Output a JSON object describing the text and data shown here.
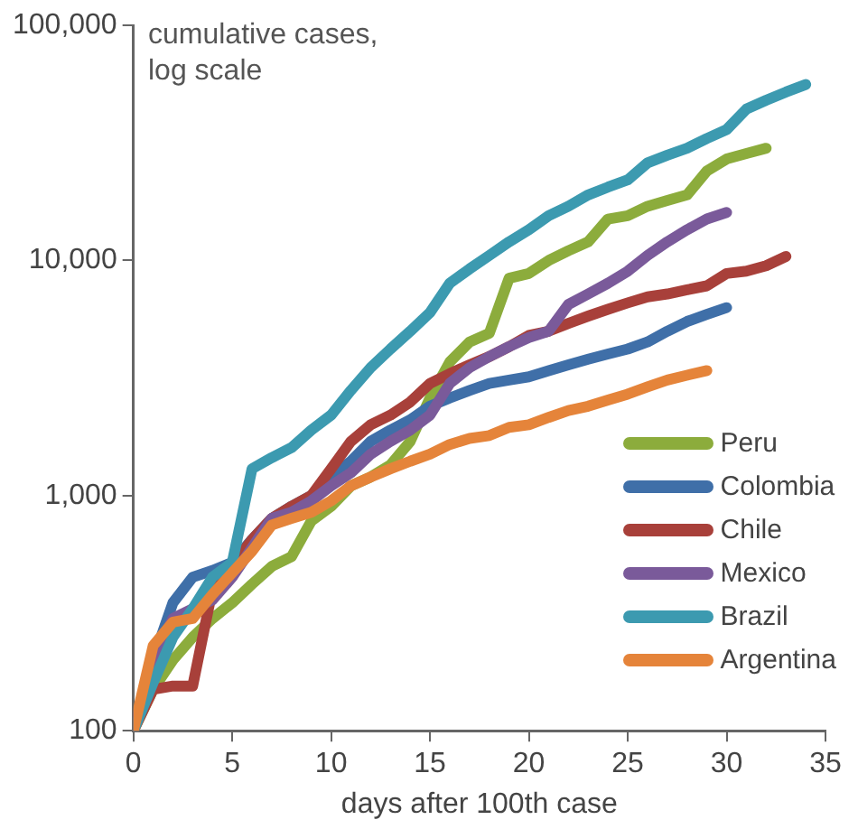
{
  "chart_data": {
    "type": "line",
    "ylabel": "cumulative cases, log scale",
    "xlabel": "days after 100th case",
    "log": "y",
    "grid": false,
    "legend": "bottom right",
    "marker": "none",
    "line_style": "solid",
    "xlim": [
      0,
      35
    ],
    "xticks": [
      0,
      5,
      10,
      15,
      20,
      25,
      30,
      35
    ],
    "ylim": [
      100,
      100000
    ],
    "yticks": [
      100,
      {
        "value": 1000,
        "label": "1,000"
      },
      {
        "value": 10000,
        "label": "10,000"
      },
      {
        "value": 100000,
        "label": "100,000"
      }
    ],
    "x": [
      0,
      1,
      2,
      3,
      4,
      5,
      6,
      7,
      8,
      9,
      10,
      11,
      12,
      13,
      14,
      15,
      16,
      17,
      18,
      19,
      20,
      21,
      22,
      23,
      24,
      25,
      26,
      27,
      28,
      29,
      30,
      31,
      32,
      33,
      34
    ],
    "series": [
      {
        "name": "Peru",
        "color": "#8cac3c",
        "values": [
          100,
          150,
          200,
          250,
          300,
          350,
          420,
          500,
          550,
          780,
          900,
          1100,
          1200,
          1350,
          1700,
          2600,
          3700,
          4500,
          4900,
          8400,
          8800,
          10000,
          11000,
          12000,
          15000,
          15500,
          17000,
          18000,
          19000,
          24000,
          27000,
          28500,
          30000,
          null,
          null
        ]
      },
      {
        "name": "Colombia",
        "color": "#3f6fa8",
        "values": [
          100,
          200,
          350,
          450,
          480,
          520,
          650,
          800,
          900,
          1000,
          1200,
          1400,
          1700,
          1900,
          2100,
          2400,
          2600,
          2800,
          3000,
          3100,
          3200,
          3400,
          3600,
          3800,
          4000,
          4200,
          4500,
          5000,
          5500,
          5900,
          6300,
          null,
          null,
          null,
          null
        ]
      },
      {
        "name": "Chile",
        "color": "#a8403a",
        "values": [
          100,
          150,
          155,
          155,
          400,
          500,
          650,
          800,
          900,
          1000,
          1300,
          1700,
          2000,
          2200,
          2500,
          3000,
          3300,
          3600,
          3900,
          4300,
          4800,
          5000,
          5400,
          5800,
          6200,
          6600,
          7000,
          7200,
          7500,
          7800,
          8800,
          9000,
          9500,
          10400,
          null
        ]
      },
      {
        "name": "Mexico",
        "color": "#7a5a9a",
        "values": [
          100,
          200,
          300,
          330,
          360,
          450,
          600,
          800,
          850,
          950,
          1100,
          1250,
          1500,
          1700,
          1900,
          2200,
          3000,
          3500,
          3900,
          4300,
          4700,
          5000,
          6500,
          7200,
          8000,
          9000,
          10500,
          12000,
          13500,
          15000,
          16000,
          null,
          null,
          null,
          null
        ]
      },
      {
        "name": "Brazil",
        "color": "#3c9ab0",
        "values": [
          100,
          160,
          250,
          330,
          450,
          520,
          1300,
          1450,
          1600,
          1900,
          2200,
          2800,
          3500,
          4200,
          5000,
          6000,
          8000,
          9200,
          10500,
          12000,
          13500,
          15500,
          17000,
          19000,
          20500,
          22000,
          26000,
          28000,
          30000,
          33000,
          36000,
          44000,
          48000,
          52000,
          56000
        ]
      },
      {
        "name": "Argentina",
        "color": "#e5843a",
        "values": [
          100,
          230,
          290,
          300,
          380,
          470,
          580,
          750,
          800,
          850,
          950,
          1100,
          1200,
          1300,
          1400,
          1500,
          1650,
          1750,
          1800,
          1950,
          2000,
          2150,
          2300,
          2400,
          2550,
          2700,
          2900,
          3100,
          3250,
          3400,
          null,
          null,
          null,
          null,
          null
        ]
      }
    ]
  }
}
